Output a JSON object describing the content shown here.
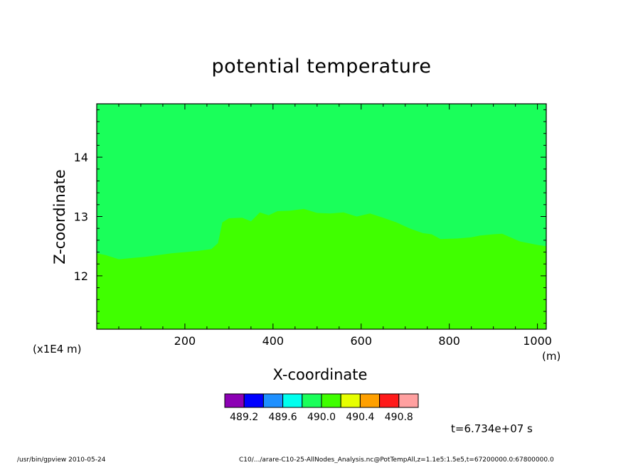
{
  "chart_data": {
    "type": "heatmap",
    "title": "potential temperature",
    "xlabel": "X-coordinate",
    "ylabel": "Z-coordinate",
    "y_unit_label": "(x1E4 m)",
    "x_unit_label": "(m)",
    "xlim": [
      0,
      1020
    ],
    "ylim": [
      11.1,
      14.9
    ],
    "x_ticks": [
      200,
      400,
      600,
      800,
      1000
    ],
    "y_ticks": [
      12,
      13,
      14
    ],
    "background_value_color": "#1aff5a",
    "lower_value_color": "#40ff00",
    "interface": [
      [
        0,
        12.38
      ],
      [
        20,
        12.35
      ],
      [
        50,
        12.28
      ],
      [
        80,
        12.3
      ],
      [
        110,
        12.32
      ],
      [
        140,
        12.35
      ],
      [
        170,
        12.38
      ],
      [
        200,
        12.4
      ],
      [
        230,
        12.42
      ],
      [
        260,
        12.45
      ],
      [
        275,
        12.55
      ],
      [
        285,
        12.9
      ],
      [
        300,
        12.97
      ],
      [
        330,
        12.98
      ],
      [
        350,
        12.92
      ],
      [
        370,
        13.07
      ],
      [
        390,
        13.02
      ],
      [
        410,
        13.09
      ],
      [
        440,
        13.1
      ],
      [
        470,
        13.13
      ],
      [
        500,
        13.06
      ],
      [
        530,
        13.05
      ],
      [
        560,
        13.07
      ],
      [
        590,
        13.0
      ],
      [
        620,
        13.05
      ],
      [
        650,
        12.98
      ],
      [
        680,
        12.9
      ],
      [
        710,
        12.8
      ],
      [
        740,
        12.72
      ],
      [
        760,
        12.7
      ],
      [
        780,
        12.62
      ],
      [
        820,
        12.63
      ],
      [
        850,
        12.65
      ],
      [
        870,
        12.68
      ],
      [
        900,
        12.7
      ],
      [
        920,
        12.71
      ],
      [
        960,
        12.58
      ],
      [
        1000,
        12.52
      ],
      [
        1020,
        12.5
      ]
    ],
    "colorbar": {
      "colors": [
        "#8c00b4",
        "#0000ff",
        "#1e90ff",
        "#00ffee",
        "#1aff5a",
        "#40ff00",
        "#e6ff00",
        "#ffa000",
        "#ff1a1a",
        "#ffa0a0"
      ],
      "tick_labels": [
        "489.2",
        "489.6",
        "490.0",
        "490.4",
        "490.8"
      ]
    }
  },
  "annotations": {
    "timestamp": "t=6.734e+07 s",
    "footer_left": "/usr/bin/gpview   2010-05-24",
    "footer_right": "C10/.../arare-C10-25-AllNodes_Analysis.nc@PotTempAll,z=1.1e5:1.5e5,t=67200000.0:67800000.0"
  }
}
